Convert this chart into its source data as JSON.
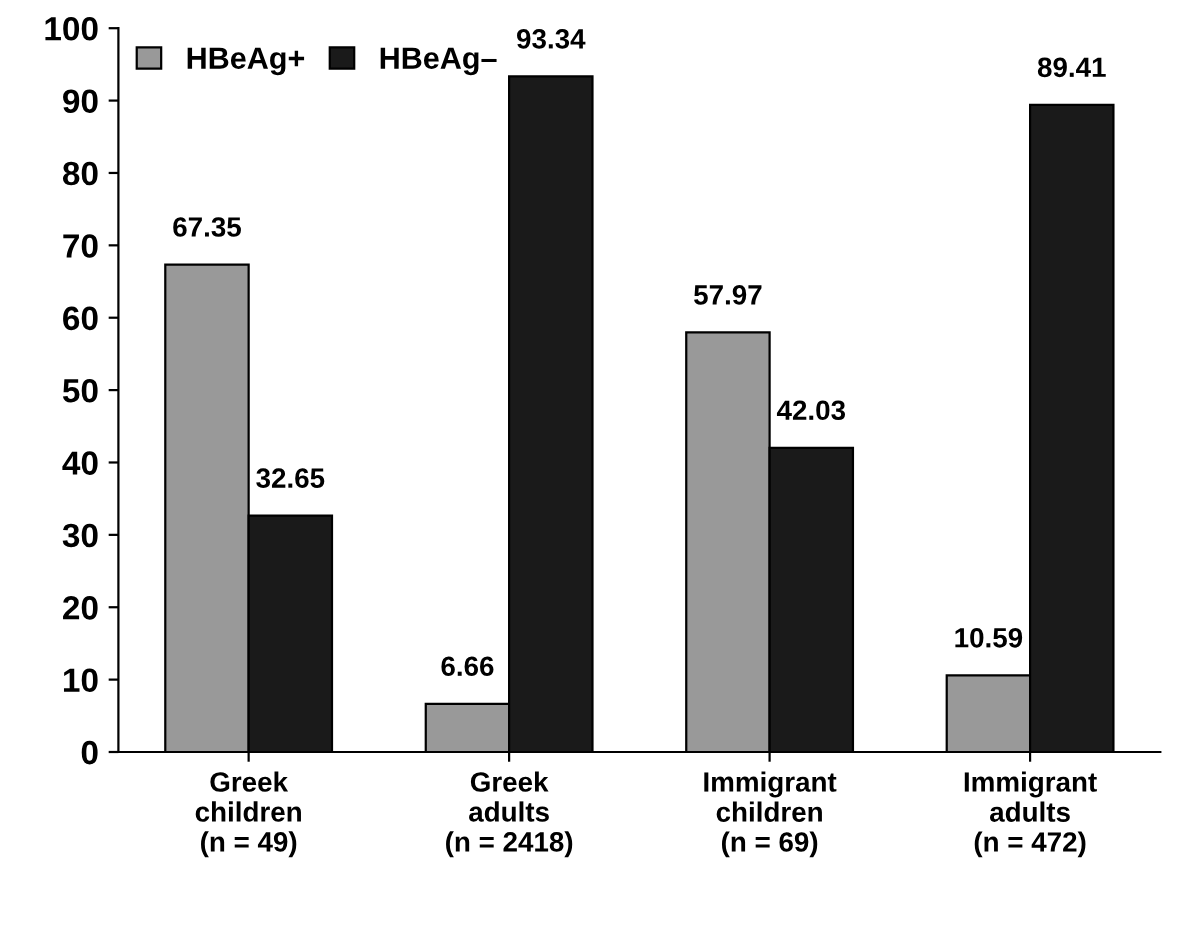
{
  "chart_data": {
    "type": "bar",
    "categories": [
      "Greek\nchildren\n(n = 49)",
      "Greek\nadults\n(n = 2418)",
      "Immigrant\nchildren\n(n = 69)",
      "Immigrant\nadults\n(n = 472)"
    ],
    "series": [
      {
        "name": "HBeAg+",
        "color": "#999999",
        "values": [
          67.35,
          6.66,
          57.97,
          10.59
        ]
      },
      {
        "name": "HBeAg–",
        "color": "#1a1a1a",
        "values": [
          32.65,
          93.34,
          42.03,
          89.41
        ]
      }
    ],
    "ylim": [
      0,
      100
    ],
    "yticks": [
      0,
      10,
      20,
      30,
      40,
      50,
      60,
      70,
      80,
      90,
      100
    ],
    "data_labels": true,
    "legend": "top left",
    "grid": false
  }
}
